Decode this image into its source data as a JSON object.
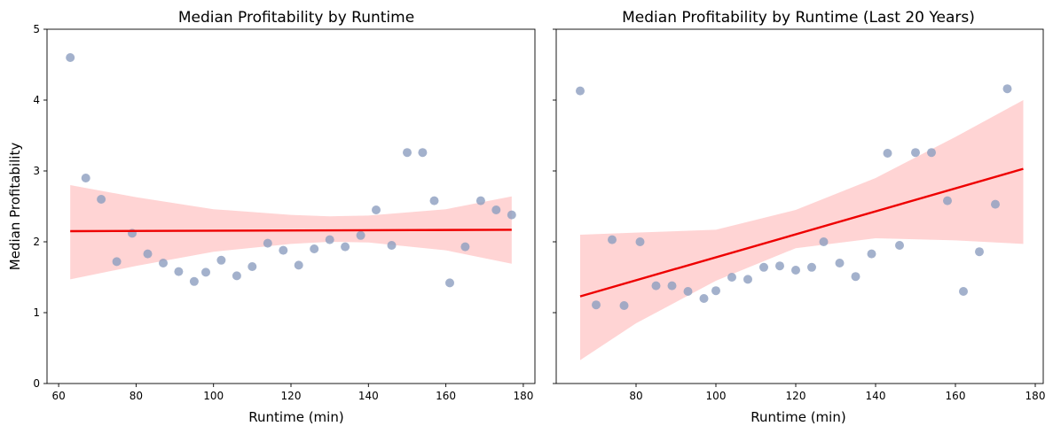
{
  "colors": {
    "points": "#8c9dbf",
    "fit": "#ee0000",
    "band": "#ffcccc"
  },
  "chart_data": [
    {
      "type": "scatter",
      "title": "Median Profitability by Runtime",
      "xlabel": "Runtime (min)",
      "ylabel": "Median Profitability",
      "xlim": [
        57,
        183
      ],
      "ylim": [
        0,
        5
      ],
      "xticks": [
        60,
        80,
        100,
        120,
        140,
        160,
        180
      ],
      "yticks": [
        0,
        1,
        2,
        3,
        4,
        5
      ],
      "show_yticklabels": true,
      "points": [
        [
          63,
          4.6
        ],
        [
          67,
          2.9
        ],
        [
          71,
          2.6
        ],
        [
          75,
          1.72
        ],
        [
          79,
          2.12
        ],
        [
          83,
          1.83
        ],
        [
          87,
          1.7
        ],
        [
          91,
          1.58
        ],
        [
          95,
          1.44
        ],
        [
          98,
          1.57
        ],
        [
          102,
          1.74
        ],
        [
          106,
          1.52
        ],
        [
          110,
          1.65
        ],
        [
          114,
          1.98
        ],
        [
          118,
          1.88
        ],
        [
          122,
          1.67
        ],
        [
          126,
          1.9
        ],
        [
          130,
          2.03
        ],
        [
          134,
          1.93
        ],
        [
          138,
          2.09
        ],
        [
          142,
          2.45
        ],
        [
          146,
          1.95
        ],
        [
          150,
          3.26
        ],
        [
          154,
          3.26
        ],
        [
          157,
          2.58
        ],
        [
          161,
          1.42
        ],
        [
          165,
          1.93
        ],
        [
          169,
          2.58
        ],
        [
          173,
          2.45
        ],
        [
          177,
          2.38
        ]
      ],
      "fit": {
        "x": [
          63,
          177
        ],
        "y": [
          2.15,
          2.17
        ]
      },
      "band": {
        "x": [
          63,
          80,
          100,
          120,
          130,
          140,
          160,
          177
        ],
        "lower": [
          1.47,
          1.66,
          1.86,
          1.97,
          2.0,
          1.99,
          1.88,
          1.69
        ],
        "upper": [
          2.8,
          2.63,
          2.46,
          2.38,
          2.36,
          2.37,
          2.46,
          2.64
        ]
      }
    },
    {
      "type": "scatter",
      "title": "Median Profitability by Runtime (Last 20 Years)",
      "xlabel": "Runtime (min)",
      "ylabel": "",
      "xlim": [
        60,
        182
      ],
      "ylim": [
        0,
        5
      ],
      "xticks": [
        80,
        100,
        120,
        140,
        160,
        180
      ],
      "yticks": [
        0,
        1,
        2,
        3,
        4,
        5
      ],
      "show_yticklabels": false,
      "points": [
        [
          66,
          4.13
        ],
        [
          70,
          1.11
        ],
        [
          74,
          2.03
        ],
        [
          77,
          1.1
        ],
        [
          81,
          2.0
        ],
        [
          85,
          1.38
        ],
        [
          89,
          1.38
        ],
        [
          93,
          1.3
        ],
        [
          97,
          1.2
        ],
        [
          100,
          1.31
        ],
        [
          104,
          1.5
        ],
        [
          108,
          1.47
        ],
        [
          112,
          1.64
        ],
        [
          116,
          1.66
        ],
        [
          120,
          1.6
        ],
        [
          124,
          1.64
        ],
        [
          127,
          2.0
        ],
        [
          131,
          1.7
        ],
        [
          135,
          1.51
        ],
        [
          139,
          1.83
        ],
        [
          143,
          3.25
        ],
        [
          146,
          1.95
        ],
        [
          150,
          3.26
        ],
        [
          154,
          3.26
        ],
        [
          158,
          2.58
        ],
        [
          162,
          1.3
        ],
        [
          166,
          1.86
        ],
        [
          170,
          2.53
        ],
        [
          173,
          4.16
        ]
      ],
      "fit": {
        "x": [
          66,
          177
        ],
        "y": [
          1.23,
          3.03
        ]
      },
      "band": {
        "x": [
          66,
          80,
          100,
          120,
          140,
          160,
          177
        ],
        "lower": [
          0.33,
          0.85,
          1.45,
          1.91,
          2.05,
          2.02,
          1.97
        ],
        "upper": [
          2.1,
          2.13,
          2.17,
          2.45,
          2.9,
          3.48,
          4.0
        ]
      }
    }
  ]
}
